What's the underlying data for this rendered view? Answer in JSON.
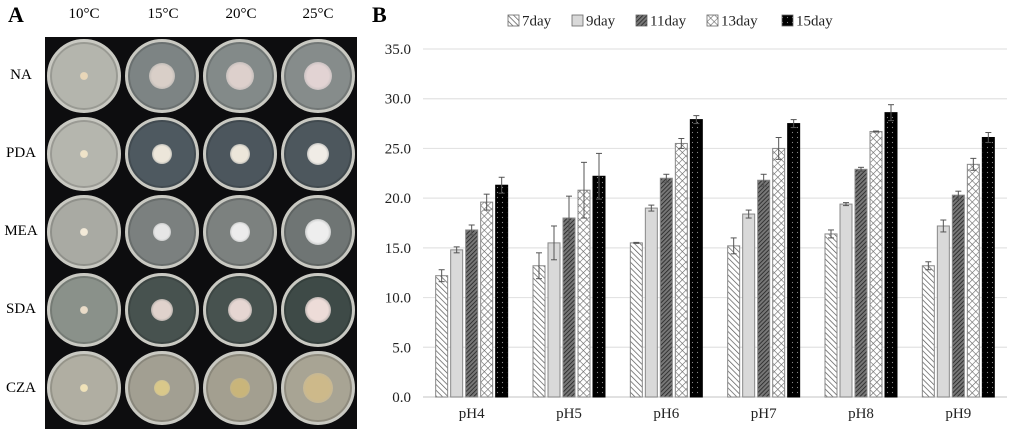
{
  "panel_a": {
    "label": "A",
    "columns": [
      "10°C",
      "15°C",
      "20°C",
      "25°C"
    ],
    "rows": [
      "NA",
      "PDA",
      "MEA",
      "SDA",
      "CZA"
    ]
  },
  "panel_b": {
    "label": "B"
  },
  "chart_data": {
    "type": "bar",
    "categories": [
      "pH4",
      "pH5",
      "pH6",
      "pH7",
      "pH8",
      "pH9"
    ],
    "series": [
      {
        "name": "7day",
        "pattern": "light-diagonal",
        "values": [
          12.2,
          13.2,
          15.5,
          15.2,
          16.4,
          13.2
        ],
        "errors": [
          0.6,
          1.3,
          0.05,
          0.8,
          0.4,
          0.4
        ]
      },
      {
        "name": "9day",
        "pattern": "solid-light-grey",
        "values": [
          14.8,
          15.5,
          19.0,
          18.4,
          19.4,
          17.2
        ],
        "errors": [
          0.3,
          1.7,
          0.3,
          0.4,
          0.15,
          0.6
        ]
      },
      {
        "name": "11day",
        "pattern": "dark-diagonal",
        "values": [
          16.8,
          18.0,
          22.0,
          21.8,
          22.9,
          20.3
        ],
        "errors": [
          0.5,
          2.2,
          0.4,
          0.6,
          0.2,
          0.4
        ]
      },
      {
        "name": "13day",
        "pattern": "crosshatch",
        "values": [
          19.6,
          20.8,
          25.5,
          25.0,
          26.7,
          23.4
        ],
        "errors": [
          0.8,
          2.8,
          0.5,
          1.1,
          0.05,
          0.6
        ]
      },
      {
        "name": "15day",
        "pattern": "black-dotted",
        "values": [
          21.3,
          22.2,
          27.9,
          27.5,
          28.6,
          26.1
        ],
        "errors": [
          0.8,
          2.3,
          0.4,
          0.4,
          0.8,
          0.5
        ]
      }
    ],
    "yticks": [
      "0.0",
      "5.0",
      "10.0",
      "15.0",
      "20.0",
      "25.0",
      "30.0",
      "35.0"
    ],
    "ylim": [
      0,
      35
    ],
    "grid": true,
    "legend": "top",
    "xlabel": "",
    "ylabel": ""
  }
}
